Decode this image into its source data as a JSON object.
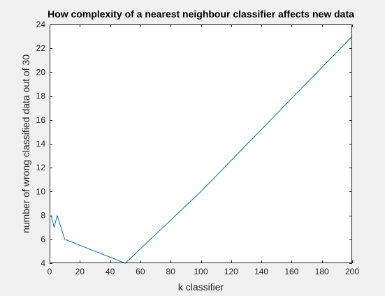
{
  "colors": {
    "figure_background": "#f0f0f0",
    "plot_background": "#ffffff",
    "axis": "#262626",
    "series": "#0072bd"
  },
  "chart_data": {
    "type": "line",
    "title": "How complexity of a nearest neighbour classifier affects new data",
    "xlabel": "k classifier",
    "ylabel": "number of wrong classified data out of 30",
    "xlim": [
      0,
      200
    ],
    "ylim": [
      4,
      24
    ],
    "xticks": [
      "0",
      "20",
      "40",
      "60",
      "80",
      "100",
      "120",
      "140",
      "160",
      "180",
      "200"
    ],
    "yticks": [
      "4",
      "6",
      "8",
      "10",
      "12",
      "14",
      "16",
      "18",
      "20",
      "22",
      "24"
    ],
    "grid": false,
    "box": true,
    "series": [
      {
        "color": "#0072bd",
        "x": [
          1,
          3,
          5,
          10,
          50,
          100,
          200
        ],
        "y": [
          8,
          7,
          8,
          6,
          4,
          10,
          23
        ]
      }
    ]
  }
}
